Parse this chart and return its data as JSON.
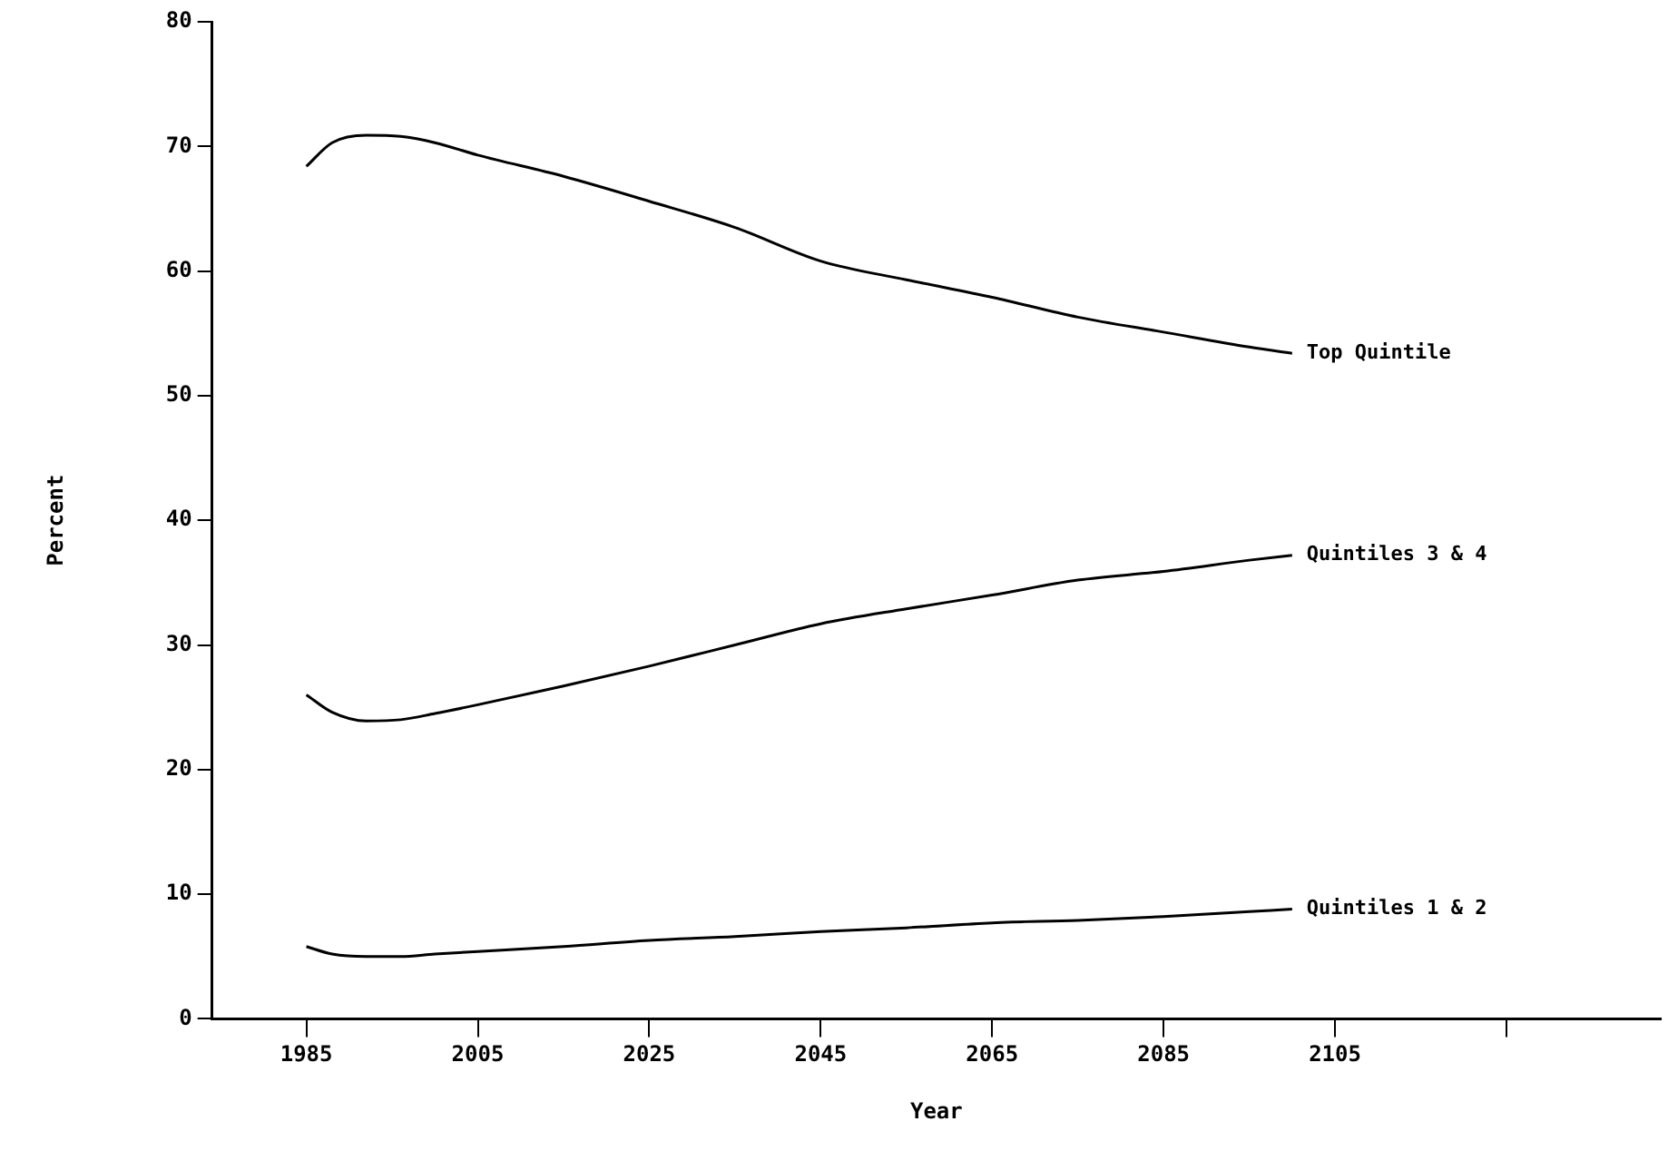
{
  "chart_data": {
    "type": "line",
    "xlabel": "Year",
    "ylabel": "Percent",
    "xlim": [
      1974,
      2143
    ],
    "xticks": [
      1985,
      2005,
      2025,
      2045,
      {
        "value": 2065,
        "label": "2065"
      },
      2085,
      2105,
      {
        "value": 2125,
        "label": null
      }
    ],
    "ylim": [
      0,
      80
    ],
    "yticks": [
      0,
      10,
      20,
      30,
      40,
      50,
      60,
      70,
      80
    ],
    "grid": false,
    "legend": false,
    "marker": "none",
    "line_style": "solid",
    "series": [
      {
        "name": "Top Quintile",
        "color": "#000000",
        "x": [
          1985,
          1988,
          1992,
          1996,
          2000,
          2005,
          2015,
          2025,
          2035,
          2045,
          2055,
          2065,
          2075,
          2085,
          2095,
          2100
        ],
        "values": [
          68.4,
          70.3,
          70.9,
          70.8,
          70.3,
          69.3,
          67.6,
          65.6,
          63.5,
          60.8,
          59.3,
          57.9,
          56.3,
          55.1,
          53.9,
          53.4
        ]
      },
      {
        "name": "Quintiles 3 & 4",
        "color": "#000000",
        "x": [
          1985,
          1988,
          1992,
          1996,
          2000,
          2005,
          2015,
          2025,
          2035,
          2045,
          2055,
          2065,
          2075,
          2085,
          2095,
          2100
        ],
        "values": [
          26.0,
          24.6,
          23.9,
          24.0,
          24.5,
          25.2,
          26.7,
          28.3,
          30.0,
          31.7,
          32.9,
          34.0,
          35.2,
          35.9,
          36.8,
          37.2
        ]
      },
      {
        "name": "Quintiles 1 & 2",
        "color": "#000000",
        "x": [
          1985,
          1988,
          1992,
          1996,
          2000,
          2005,
          2015,
          2025,
          2035,
          2045,
          2055,
          2065,
          2075,
          2085,
          2095,
          2100
        ],
        "values": [
          5.8,
          5.2,
          5.0,
          5.0,
          5.2,
          5.4,
          5.8,
          6.3,
          6.6,
          7.0,
          7.3,
          7.7,
          7.9,
          8.2,
          8.6,
          8.8
        ]
      }
    ]
  }
}
